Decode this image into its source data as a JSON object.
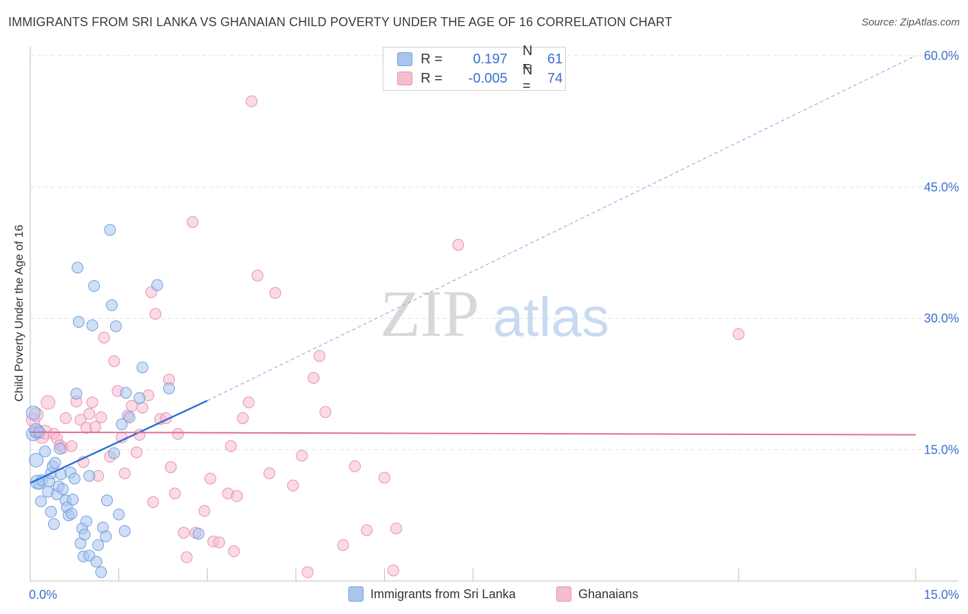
{
  "title": "IMMIGRANTS FROM SRI LANKA VS GHANAIAN CHILD POVERTY UNDER THE AGE OF 16 CORRELATION CHART",
  "source": "Source: ZipAtlas.com",
  "watermark": {
    "zip": "ZIP",
    "atlas": "atlas"
  },
  "legend": {
    "rows": [
      {
        "r_label": "R =",
        "r_value": "0.197",
        "n_label": "N =",
        "n_value": "61"
      },
      {
        "r_label": "R =",
        "r_value": "-0.005",
        "n_label": "N =",
        "n_value": "74"
      }
    ]
  },
  "bottom_legend": {
    "series1": "Immigrants from Sri Lanka",
    "series2": "Ghanaians"
  },
  "colors": {
    "blue_fill": "#a9c5ee",
    "blue_stroke": "#6f9ce0",
    "blue_line": "#2d6fd6",
    "pink_fill": "#f5bcd0",
    "pink_stroke": "#e88fb0",
    "pink_line": "#e06a93",
    "grid": "#dddddd",
    "tick_label": "#3d6fd1"
  },
  "chart_data": {
    "type": "scatter",
    "title": "IMMIGRANTS FROM SRI LANKA VS GHANAIAN CHILD POVERTY UNDER THE AGE OF 16 CORRELATION CHART",
    "xlabel": "",
    "ylabel": "Child Poverty Under the Age of 16",
    "xlim": [
      0,
      15
    ],
    "ylim": [
      0,
      60
    ],
    "x_tick_labels": [
      "0.0%",
      "15.0%"
    ],
    "y_ticks": [
      15,
      30,
      45,
      60
    ],
    "y_tick_labels": [
      "15.0%",
      "30.0%",
      "45.0%",
      "60.0%"
    ],
    "series": [
      {
        "name": "Immigrants from Sri Lanka",
        "r": 0.197,
        "n": 61,
        "points": [
          [
            0.05,
            19.2
          ],
          [
            0.05,
            16.8
          ],
          [
            0.1,
            17.2
          ],
          [
            0.1,
            13.8
          ],
          [
            0.12,
            11.3
          ],
          [
            0.15,
            11.1
          ],
          [
            0.18,
            9.1
          ],
          [
            0.2,
            11.5
          ],
          [
            0.25,
            14.8
          ],
          [
            0.3,
            10.2
          ],
          [
            0.32,
            11.4
          ],
          [
            0.35,
            7.9
          ],
          [
            0.35,
            12.3
          ],
          [
            0.38,
            13.1
          ],
          [
            0.42,
            13.5
          ],
          [
            0.45,
            9.9
          ],
          [
            0.48,
            10.8
          ],
          [
            0.5,
            15.1
          ],
          [
            0.52,
            12.2
          ],
          [
            0.55,
            10.5
          ],
          [
            0.6,
            9.2
          ],
          [
            0.62,
            8.4
          ],
          [
            0.65,
            7.5
          ],
          [
            0.68,
            12.4
          ],
          [
            0.7,
            7.7
          ],
          [
            0.72,
            9.3
          ],
          [
            0.75,
            11.7
          ],
          [
            0.78,
            21.4
          ],
          [
            0.8,
            35.8
          ],
          [
            0.82,
            29.6
          ],
          [
            0.85,
            4.3
          ],
          [
            0.88,
            6.0
          ],
          [
            0.9,
            2.8
          ],
          [
            0.92,
            5.3
          ],
          [
            0.95,
            6.8
          ],
          [
            1.0,
            2.9
          ],
          [
            1.05,
            29.2
          ],
          [
            1.08,
            33.7
          ],
          [
            1.12,
            2.2
          ],
          [
            1.15,
            4.1
          ],
          [
            1.2,
            1.0
          ],
          [
            1.23,
            6.1
          ],
          [
            1.28,
            5.1
          ],
          [
            1.3,
            9.2
          ],
          [
            1.35,
            40.1
          ],
          [
            1.38,
            31.5
          ],
          [
            1.42,
            14.6
          ],
          [
            1.45,
            29.1
          ],
          [
            1.5,
            7.6
          ],
          [
            1.55,
            17.9
          ],
          [
            1.6,
            5.7
          ],
          [
            1.62,
            21.5
          ],
          [
            1.68,
            18.7
          ],
          [
            1.85,
            20.9
          ],
          [
            1.9,
            24.4
          ],
          [
            2.15,
            33.8
          ],
          [
            2.35,
            22.0
          ],
          [
            2.85,
            5.4
          ],
          [
            0.4,
            6.5
          ],
          [
            1.0,
            12.0
          ],
          [
            0.15,
            17.0
          ]
        ],
        "trend": {
          "x0": 0,
          "y0": 11.2,
          "x_solid_end": 3.0,
          "y_solid_end": 20.6,
          "x1": 15,
          "y1": 60.0,
          "extended_style": "dashed"
        }
      },
      {
        "name": "Ghanaians",
        "r": -0.005,
        "n": 74,
        "points": [
          [
            0.05,
            18.4
          ],
          [
            0.1,
            19.0
          ],
          [
            0.12,
            17.0
          ],
          [
            0.2,
            16.5
          ],
          [
            0.25,
            17.0
          ],
          [
            0.3,
            20.4
          ],
          [
            0.4,
            16.8
          ],
          [
            0.45,
            16.3
          ],
          [
            0.5,
            15.5
          ],
          [
            0.55,
            15.2
          ],
          [
            0.6,
            18.6
          ],
          [
            0.7,
            15.4
          ],
          [
            0.78,
            20.5
          ],
          [
            0.85,
            18.4
          ],
          [
            0.9,
            13.6
          ],
          [
            0.95,
            17.5
          ],
          [
            1.0,
            19.1
          ],
          [
            1.05,
            20.4
          ],
          [
            1.1,
            17.6
          ],
          [
            1.15,
            12.0
          ],
          [
            1.2,
            18.7
          ],
          [
            1.25,
            27.8
          ],
          [
            1.35,
            14.2
          ],
          [
            1.42,
            25.1
          ],
          [
            1.48,
            21.7
          ],
          [
            1.55,
            16.4
          ],
          [
            1.6,
            12.3
          ],
          [
            1.65,
            18.9
          ],
          [
            1.72,
            20.0
          ],
          [
            1.8,
            14.7
          ],
          [
            1.85,
            16.7
          ],
          [
            1.9,
            19.8
          ],
          [
            2.0,
            21.2
          ],
          [
            2.05,
            33.0
          ],
          [
            2.08,
            9.0
          ],
          [
            2.12,
            30.5
          ],
          [
            2.2,
            18.5
          ],
          [
            2.3,
            18.6
          ],
          [
            2.35,
            23.0
          ],
          [
            2.38,
            13.0
          ],
          [
            2.45,
            10.0
          ],
          [
            2.5,
            16.8
          ],
          [
            2.6,
            5.5
          ],
          [
            2.65,
            2.7
          ],
          [
            2.75,
            41.0
          ],
          [
            2.8,
            5.5
          ],
          [
            2.95,
            8.0
          ],
          [
            3.05,
            11.7
          ],
          [
            3.1,
            4.5
          ],
          [
            3.2,
            4.4
          ],
          [
            3.35,
            10.0
          ],
          [
            3.4,
            15.4
          ],
          [
            3.45,
            3.4
          ],
          [
            3.5,
            9.7
          ],
          [
            3.6,
            18.6
          ],
          [
            3.7,
            20.4
          ],
          [
            3.75,
            54.8
          ],
          [
            3.85,
            34.9
          ],
          [
            4.05,
            12.3
          ],
          [
            4.15,
            32.9
          ],
          [
            4.45,
            10.9
          ],
          [
            4.6,
            14.3
          ],
          [
            4.7,
            1.0
          ],
          [
            4.8,
            23.2
          ],
          [
            4.9,
            25.7
          ],
          [
            5.0,
            19.3
          ],
          [
            5.3,
            4.1
          ],
          [
            5.5,
            13.1
          ],
          [
            5.7,
            5.8
          ],
          [
            6.0,
            11.8
          ],
          [
            6.15,
            1.2
          ],
          [
            6.2,
            6.0
          ],
          [
            7.25,
            38.4
          ],
          [
            12.0,
            28.2
          ]
        ],
        "trend": {
          "x0": 0,
          "y0": 17.0,
          "x1": 15,
          "y1": 16.7,
          "extended_style": "solid"
        }
      }
    ]
  }
}
